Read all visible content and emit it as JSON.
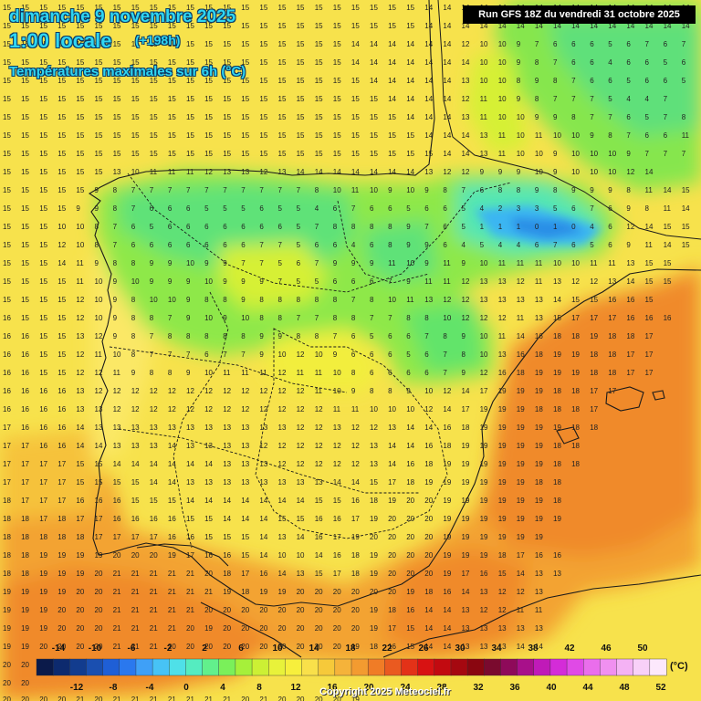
{
  "header": {
    "date": "dimanche 9 novembre 2025",
    "time": "1:00 locale",
    "lead": "(+198h)",
    "subtitle": "Températures maximales sur 6h (°C)",
    "run": "Run GFS 18Z du vendredi 31 octobre 2025"
  },
  "footer": {
    "copyright": "Copyright 2025 Meteociel.fr"
  },
  "legend": {
    "unit": "(°C)",
    "top_labels": [
      "-14",
      "-10",
      "-6",
      "-2",
      "2",
      "6",
      "10",
      "14",
      "18",
      "22",
      "26",
      "30",
      "34",
      "38",
      "42",
      "46",
      "50"
    ],
    "bottom_labels": [
      "-12",
      "-8",
      "-4",
      "0",
      "4",
      "8",
      "12",
      "16",
      "20",
      "24",
      "28",
      "32",
      "36",
      "40",
      "44",
      "48",
      "52"
    ],
    "colors": [
      "#0b1a4a",
      "#0d2a6e",
      "#123c8e",
      "#1a4fb0",
      "#1f5fd6",
      "#2a78ee",
      "#3fa0f7",
      "#47c3f6",
      "#4fe0e8",
      "#55ecc0",
      "#62f08c",
      "#7af05a",
      "#a6f03a",
      "#ccf034",
      "#e8f23a",
      "#f7ef3c",
      "#f9e04a",
      "#f6c93a",
      "#f5b33a",
      "#f39b30",
      "#f07c26",
      "#ea5a20",
      "#e33218",
      "#d81212",
      "#c20a10",
      "#a50810",
      "#8a0610",
      "#7a0a2e",
      "#8e0a5a",
      "#a8108a",
      "#c01ab8",
      "#d42cd8",
      "#e04ae6",
      "#ea6eec",
      "#f090f0",
      "#f4b2f4",
      "#f8d0f8",
      "#fce8fc"
    ]
  },
  "regions": {
    "land_border_color": "#1a1a1a",
    "values_grid_description": "Temperature value labels across the map"
  },
  "grid": {
    "rows": [
      {
        "y": 4,
        "vals": "15 15 15 15 15 15 15 15 15 15 15 15 15 15 15 15 15 15 15 15 15 15 15 14 14 14 14 14 14 14 14 14 14 14 14 14 14 14 14 14"
      },
      {
        "y": 24,
        "vals": "15 15 15 15 15 15 15 15 15 15 15 15 15 15 15 15 15 15 15 15 15 15 15 14 14 14 14 14 14 14 14 14 14 14 14 14 14 14 14 14"
      },
      {
        "y": 44,
        "vals": "15 15 15 15 15 15 15 15 15 15 15 15 15 15 15 15 15 15 15 14 14 14 14 14 14 12 10 10 9 7 6 6 6 5 6 7 6 7 7"
      },
      {
        "y": 64,
        "vals": "15 15 15 15 15 15 15 15 15 15 15 15 15 15 15 15 15 15 15 14 14 14 14 14 14 14 10 10 9 8 7 6 6 4 6 6 5 6 6"
      },
      {
        "y": 84,
        "vals": "15 15 15 15 15 15 15 15 15 15 15 15 15 15 15 15 15 15 15 15 14 14 14 14 14 13 10 10 8 9 8 7 6 6 5 6 6 5 6"
      },
      {
        "y": 104,
        "vals": "15 15 15 15 15 15 15 15 15 15 15 15 15 15 15 15 15 15 15 15 15 14 14 14 14 12 11 10 9 8 7 7 7 5 4 4 7"
      },
      {
        "y": 124,
        "vals": "15 15 15 15 15 15 15 15 15 15 15 15 15 15 15 15 15 15 15 15 15 15 14 14 14 13 11 10 10 9 9 8 7 7 6 5 7 8"
      },
      {
        "y": 144,
        "vals": "15 15 15 15 15 15 15 15 15 15 15 15 15 15 15 15 15 15 15 15 15 15 15 14 14 14 13 11 10 11 10 10 9 8 7 6 6 11 10"
      },
      {
        "y": 164,
        "vals": "15 15 15 15 15 15 15 15 15 15 15 15 15 15 15 15 15 15 15 15 15 15 15 15 14 14 13 11 10 10 9 10 10 10 9 7 7 7 7 9"
      },
      {
        "y": 184,
        "vals": "15 15 15 15 15 15 13 10 11 11 11 12 13 13 12 13 14 14 14 14 14 14 14 13 12 12 9 9 9 10 9 10 10 10 12 14"
      },
      {
        "y": 204,
        "vals": "15 15 15 15 15 9 8 7 7 7 7 7 7 7 7 7 7 8 10 11 10 9 10 9 8 7 6 8 8 9 8 9 9 9 8 11 14 15 15"
      },
      {
        "y": 224,
        "vals": "15 15 15 15 9 9 8 7 6 6 6 5 5 5 6 5 5 4 6 7 6 6 5 6 6 5 4 2 3 3 5 6 7 6 9 8 11 14 15 15"
      },
      {
        "y": 244,
        "vals": "15 15 15 10 10 8 7 6 5 6 6 6 6 6 6 6 5 7 8 8 8 8 9 7 6 5 1 1 1 0 1 0 4 6 12 14 15 15"
      },
      {
        "y": 264,
        "vals": "15 15 15 12 10 8 7 6 6 6 6 6 6 6 7 7 5 6 6 4 6 8 9 9 6 4 5 4 4 6 7 6 5 6 9 11 14 15 15"
      },
      {
        "y": 284,
        "vals": "15 15 15 14 11 9 8 8 9 9 10 9 9 7 7 5 6 7 9 9 9 11 10 9 11 9 10 11 11 11 10 10 11 11 13 15 15"
      },
      {
        "y": 304,
        "vals": "15 15 15 15 11 10 9 10 9 9 9 10 9 9 9 7 5 5 6 6 6 7 9 11 11 12 13 13 12 11 13 12 12 13 14 15 15"
      },
      {
        "y": 324,
        "vals": "15 15 15 15 12 10 9 8 10 10 9 8 8 9 8 8 8 8 8 7 8 10 11 13 12 12 13 13 13 13 14 15 15 16 16 15"
      },
      {
        "y": 344,
        "vals": "16 15 15 15 12 10 9 8 8 7 9 10 9 10 8 8 7 7 8 8 7 7 8 8 10 12 12 12 11 13 15 17 17 17 16 16 16"
      },
      {
        "y": 364,
        "vals": "16 16 15 15 13 12 9 8 7 8 8 8 8 8 9 9 8 8 7 6 5 6 6 7 8 9 10 11 14 16 18 18 19 18 18 17"
      },
      {
        "y": 384,
        "vals": "16 16 15 15 12 11 10 8 7 7 7 6 7 7 9 10 12 10 9 6 6 6 5 6 7 8 10 13 16 18 19 19 18 18 17 17"
      },
      {
        "y": 404,
        "vals": "16 16 15 15 12 12 11 9 8 8 9 10 11 11 11 12 11 11 10 8 6 6 6 6 7 9 12 16 18 19 19 19 18 18 17 17"
      },
      {
        "y": 424,
        "vals": "16 16 16 16 13 12 12 12 12 12 12 12 12 12 12 12 12 11 10 9 8 8 9 10 12 14 17 19 19 19 18 18 17 17"
      },
      {
        "y": 444,
        "vals": "16 16 16 16 13 13 12 12 12 12 12 12 12 12 12 12 12 12 11 11 10 10 10 12 14 17 19 19 19 18 18 18 17"
      },
      {
        "y": 464,
        "vals": "17 16 16 16 14 13 13 13 13 13 13 13 13 13 13 13 12 12 13 12 12 13 14 14 16 18 19 19 19 19 19 18 18"
      },
      {
        "y": 484,
        "vals": "17 17 16 16 14 14 13 13 13 14 13 13 13 13 12 12 12 12 12 12 13 14 14 16 18 19 19 19 19 19 18 18"
      },
      {
        "y": 504,
        "vals": "17 17 17 17 15 15 14 14 14 14 14 14 13 13 13 12 12 12 12 12 13 14 16 18 19 19 19 19 19 19 18 18"
      },
      {
        "y": 524,
        "vals": "17 17 17 17 15 15 15 15 14 14 13 13 13 13 13 13 13 13 14 14 15 17 18 19 19 19 19 19 19 18 18"
      },
      {
        "y": 544,
        "vals": "18 17 17 17 16 16 16 15 15 15 14 14 14 14 14 14 14 15 15 16 18 19 20 20 19 19 19 19 19 19 18"
      },
      {
        "y": 564,
        "vals": "18 18 17 18 17 17 16 16 16 16 15 15 14 14 14 15 15 16 16 17 19 20 20 20 19 19 19 19 19 19 19"
      },
      {
        "y": 584,
        "vals": "18 18 18 18 18 17 17 17 17 16 16 15 15 15 14 13 14 16 17 19 20 20 20 20 19 19 19 19 19 19"
      },
      {
        "y": 604,
        "vals": "18 18 19 19 19 19 20 20 20 19 17 16 16 15 14 10 10 14 16 18 19 20 20 20 19 19 19 18 17 16 16"
      },
      {
        "y": 624,
        "vals": "18 18 19 19 19 20 21 21 21 21 21 20 18 17 16 14 13 15 17 18 19 20 20 20 19 17 16 15 14 13 13"
      },
      {
        "y": 644,
        "vals": "19 19 19 19 20 20 21 21 21 21 21 21 19 18 19 19 20 20 20 20 20 20 19 18 16 14 13 12 12 13"
      },
      {
        "y": 664,
        "vals": "19 19 19 20 20 20 21 21 21 21 21 20 20 20 20 20 20 20 20 20 19 18 16 14 14 13 12 12 11 11"
      },
      {
        "y": 684,
        "vals": "19 19 19 20 20 20 21 21 21 21 20 19 20 20 20 20 20 20 20 20 19 17 15 14 14 13 13 13 13 13"
      },
      {
        "y": 704,
        "vals": "19 19 20 20 20 20 21 21 21 20 20 20 20 20 20 20 20 20 20 19 18 16 15 14 14 13 13 13 14 14"
      },
      {
        "y": 724,
        "vals": "20 20"
      },
      {
        "y": 744,
        "vals": "20 20"
      },
      {
        "y": 762,
        "vals": "20 20 20 20 21 20 21 21 21 21 21 21 21 20 21 20 20 20 20 19"
      }
    ]
  }
}
